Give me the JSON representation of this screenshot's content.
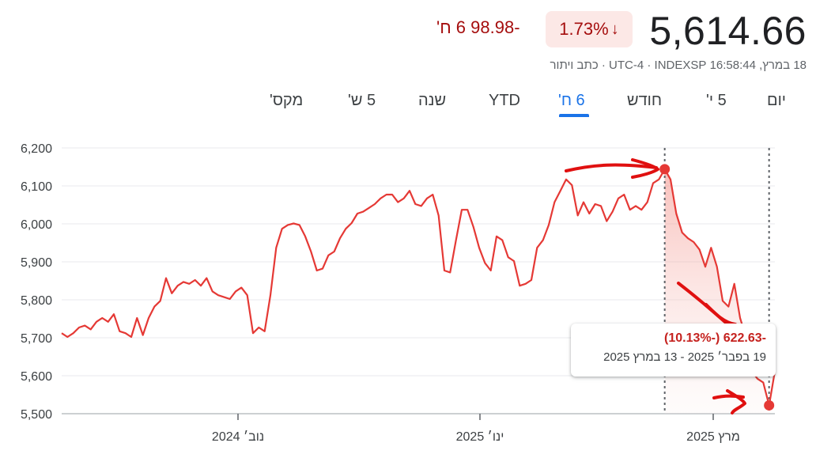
{
  "quote": {
    "price": "5,614.66",
    "percent_change": "1.73%",
    "change": "-98.98 6 ח'",
    "meta": "18 במרץ, 16:58:44 UTC-4 · INDEXSP · כתב ויתור"
  },
  "tabs": [
    {
      "label": "יום",
      "active": false
    },
    {
      "label": "5 י'",
      "active": false
    },
    {
      "label": "חודש",
      "active": false
    },
    {
      "label": "6 ח'",
      "active": true
    },
    {
      "label": "YTD",
      "active": false
    },
    {
      "label": "שנה",
      "active": false
    },
    {
      "label": "5 ש'",
      "active": false
    },
    {
      "label": "מקס'",
      "active": false
    }
  ],
  "tooltip": {
    "change": "-622.63 (-10.13%)",
    "range": "19 בפבר׳ 2025 - 13 במרץ 2025"
  },
  "colors": {
    "negative": "#c5221f",
    "line": "#e53935",
    "active_tab": "#1a73e8",
    "annotation": "#e01010"
  },
  "icons": {
    "down_arrow": "arrow-down-icon"
  },
  "chart_data": {
    "type": "line",
    "ylim": [
      5500,
      6200
    ],
    "yticks": [
      "6,200",
      "6,100",
      "6,000",
      "5,900",
      "5,800",
      "5,700",
      "5,600",
      "5,500"
    ],
    "xticks": [
      "נוב׳ 2024",
      "ינו׳ 2025",
      "מרץ 2025"
    ],
    "grid": true,
    "highlight_range": {
      "start": "2025-02-19",
      "end": "2025-03-13",
      "start_value": 6144,
      "end_value": 5521
    },
    "series": [
      {
        "values": [
          5712,
          5702,
          5712,
          5727,
          5732,
          5722,
          5742,
          5752,
          5742,
          5762,
          5717,
          5712,
          5702,
          5752,
          5707,
          5752,
          5782,
          5797,
          5857,
          5817,
          5837,
          5847,
          5842,
          5852,
          5837,
          5857,
          5822,
          5812,
          5807,
          5802,
          5822,
          5832,
          5812,
          5712,
          5727,
          5717,
          5812,
          5937,
          5987,
          5997,
          6001,
          5997,
          5967,
          5927,
          5877,
          5882,
          5917,
          5927,
          5962,
          5987,
          6002,
          6027,
          6032,
          6042,
          6052,
          6067,
          6077,
          6077,
          6057,
          6067,
          6087,
          6052,
          6047,
          6067,
          6077,
          6022,
          5877,
          5872,
          5957,
          6037,
          6037,
          5992,
          5937,
          5897,
          5877,
          5967,
          5957,
          5912,
          5902,
          5837,
          5842,
          5852,
          5937,
          5957,
          5997,
          6057,
          6087,
          6117,
          6102,
          6022,
          6057,
          6027,
          6052,
          6047,
          6007,
          6032,
          6067,
          6077,
          6037,
          6047,
          6037,
          6057,
          6107,
          6117,
          6144,
          6117,
          6027,
          5977,
          5962,
          5952,
          5932,
          5887,
          5937,
          5887,
          5797,
          5782,
          5842,
          5752,
          5702,
          5612,
          5592,
          5582,
          5522,
          5612
        ]
      }
    ]
  }
}
